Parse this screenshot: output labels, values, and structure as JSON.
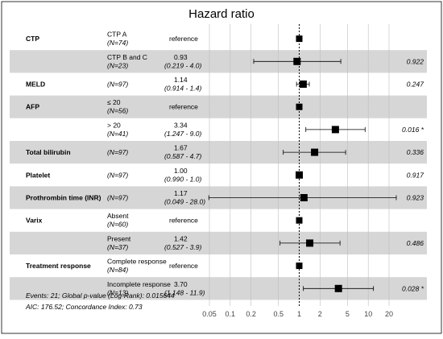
{
  "chart_data": {
    "type": "forest",
    "title": "Hazard ratio",
    "x_scale": "log",
    "x_ticks": [
      "0.05",
      "0.1",
      "0.2",
      "0.5",
      "1",
      "2",
      "5",
      "10",
      "20"
    ],
    "reference_line": 1,
    "rows": [
      {
        "variable": "CTP",
        "level": "CTP A",
        "n": "(N=74)",
        "hr_text": "reference",
        "ci_text": "",
        "p_text": "",
        "hr": 1,
        "lo": null,
        "hi": null,
        "ref": true,
        "shaded": false
      },
      {
        "variable": "",
        "level": "CTP B and C",
        "n": "(N=23)",
        "hr_text": "0.93",
        "ci_text": "(0.219 -  4.0)",
        "p_text": "0.922",
        "hr": 0.93,
        "lo": 0.219,
        "hi": 4.0,
        "ref": false,
        "shaded": true
      },
      {
        "variable": "MELD",
        "level": "",
        "n": "(N=97)",
        "hr_text": "1.14",
        "ci_text": "(0.914 -  1.4)",
        "p_text": "0.247",
        "hr": 1.14,
        "lo": 0.914,
        "hi": 1.4,
        "ref": false,
        "shaded": false
      },
      {
        "variable": "AFP",
        "level": "≤ 20",
        "n": "(N=56)",
        "hr_text": "reference",
        "ci_text": "",
        "p_text": "",
        "hr": 1,
        "lo": null,
        "hi": null,
        "ref": true,
        "shaded": true
      },
      {
        "variable": "",
        "level": "> 20",
        "n": "(N=41)",
        "hr_text": "3.34",
        "ci_text": "(1.247 -  9.0)",
        "p_text": "0.016 *",
        "hr": 3.34,
        "lo": 1.247,
        "hi": 9.0,
        "ref": false,
        "shaded": false
      },
      {
        "variable": "Total bilirubin",
        "level": "",
        "n": "(N=97)",
        "hr_text": "1.67",
        "ci_text": "(0.587 -  4.7)",
        "p_text": "0.336",
        "hr": 1.67,
        "lo": 0.587,
        "hi": 4.7,
        "ref": false,
        "shaded": true
      },
      {
        "variable": "Platelet",
        "level": "",
        "n": "(N=97)",
        "hr_text": "1.00",
        "ci_text": "(0.990 -  1.0)",
        "p_text": "0.917",
        "hr": 1.0,
        "lo": 0.99,
        "hi": 1.0,
        "ref": false,
        "shaded": false
      },
      {
        "variable": "Prothrombin time (INR)",
        "level": "",
        "n": "(N=97)",
        "hr_text": "1.17",
        "ci_text": "(0.049 - 28.0)",
        "p_text": "0.923",
        "hr": 1.17,
        "lo": 0.049,
        "hi": 28.0,
        "ref": false,
        "shaded": true
      },
      {
        "variable": "Varix",
        "level": "Absent",
        "n": "(N=60)",
        "hr_text": "reference",
        "ci_text": "",
        "p_text": "",
        "hr": 1,
        "lo": null,
        "hi": null,
        "ref": true,
        "shaded": false
      },
      {
        "variable": "",
        "level": "Present",
        "n": "(N=37)",
        "hr_text": "1.42",
        "ci_text": "(0.527 -  3.9)",
        "p_text": "0.486",
        "hr": 1.42,
        "lo": 0.527,
        "hi": 3.9,
        "ref": false,
        "shaded": true
      },
      {
        "variable": "Treatment response",
        "level": "Complete response",
        "n": "(N=84)",
        "hr_text": "reference",
        "ci_text": "",
        "p_text": "",
        "hr": 1,
        "lo": null,
        "hi": null,
        "ref": true,
        "shaded": false
      },
      {
        "variable": "",
        "level": "Incomplete response",
        "n": "(N=13)",
        "hr_text": "3.70",
        "ci_text": "(1.148 - 11.9)",
        "p_text": "0.028 *",
        "hr": 3.7,
        "lo": 1.148,
        "hi": 11.9,
        "ref": false,
        "shaded": true
      }
    ],
    "footer": [
      "Events: 21; Global p-value (Log-Rank): 0.015644",
      "AIC: 176.52; Concordance Index: 0.73"
    ]
  }
}
